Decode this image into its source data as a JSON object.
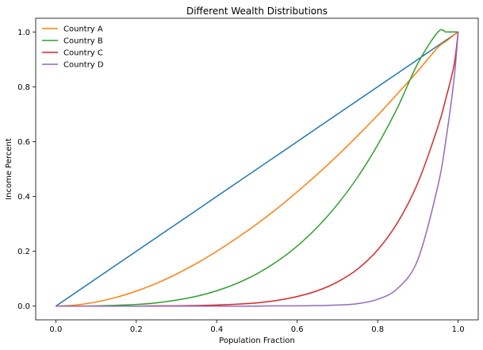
{
  "chart_data": {
    "type": "line",
    "title": "Different Wealth Distributions",
    "xlabel": "Population Fraction",
    "ylabel": "Income Percent",
    "xlim": [
      -0.05,
      1.05
    ],
    "ylim": [
      -0.05,
      1.05
    ],
    "xticks": [
      0.0,
      0.2,
      0.4,
      0.6,
      0.8,
      1.0
    ],
    "yticks": [
      0.0,
      0.2,
      0.4,
      0.6,
      0.8,
      1.0
    ],
    "xtick_labels": [
      "0.0",
      "0.2",
      "0.4",
      "0.6",
      "0.8",
      "1.0"
    ],
    "ytick_labels": [
      "0.0",
      "0.2",
      "0.4",
      "0.6",
      "0.8",
      "1.0"
    ],
    "grid": false,
    "legend_position": "top-left",
    "x": [
      0.0,
      0.05,
      0.1,
      0.15,
      0.2,
      0.25,
      0.3,
      0.35,
      0.4,
      0.45,
      0.5,
      0.55,
      0.6,
      0.65,
      0.7,
      0.75,
      0.8,
      0.85,
      0.9,
      0.95,
      0.97,
      0.99,
      1.0
    ],
    "series": [
      {
        "color": "#1f77b4",
        "in_legend": false,
        "values": [
          0.0,
          0.05,
          0.1,
          0.15,
          0.2,
          0.25,
          0.3,
          0.35,
          0.4,
          0.45,
          0.5,
          0.55,
          0.6,
          0.65,
          0.7,
          0.75,
          0.8,
          0.85,
          0.9,
          0.95,
          0.97,
          0.99,
          1.0
        ]
      },
      {
        "name": "Country A",
        "color": "#ff7f0e",
        "in_legend": true,
        "values": [
          0.0,
          0.004,
          0.015,
          0.032,
          0.055,
          0.083,
          0.117,
          0.156,
          0.2,
          0.248,
          0.3,
          0.356,
          0.417,
          0.481,
          0.549,
          0.621,
          0.696,
          0.776,
          0.858,
          0.944,
          0.966,
          0.989,
          1.0
        ]
      },
      {
        "name": "Country B",
        "color": "#2ca02c",
        "in_legend": true,
        "values": [
          0.0,
          0.0,
          0.001,
          0.003,
          0.006,
          0.012,
          0.022,
          0.036,
          0.056,
          0.083,
          0.118,
          0.163,
          0.219,
          0.288,
          0.371,
          0.47,
          0.588,
          0.726,
          0.886,
          1.0,
          1.0,
          1.0,
          1.0
        ]
      },
      {
        "name": "Country C",
        "color": "#d62728",
        "in_legend": true,
        "values": [
          0.0,
          0.0,
          0.0,
          0.0,
          0.0,
          0.001,
          0.001,
          0.002,
          0.004,
          0.007,
          0.012,
          0.021,
          0.035,
          0.056,
          0.088,
          0.135,
          0.205,
          0.306,
          0.45,
          0.655,
          0.76,
          0.88,
          1.0
        ]
      },
      {
        "name": "Country D",
        "color": "#9467bd",
        "in_legend": true,
        "values": [
          0.0,
          0.0,
          0.0,
          0.0,
          0.0,
          0.0,
          0.0,
          0.0,
          0.0,
          0.0,
          0.0,
          0.001,
          0.001,
          0.002,
          0.004,
          0.009,
          0.025,
          0.065,
          0.17,
          0.44,
          0.61,
          0.83,
          1.0
        ]
      }
    ]
  }
}
